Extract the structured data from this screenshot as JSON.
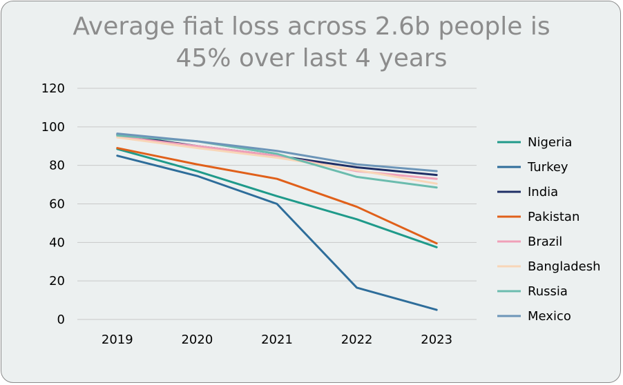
{
  "chart_data": {
    "type": "line",
    "title": "Average fiat loss across 2.6b people is 45% over last 4 years",
    "title_lines": [
      "Average fiat loss across 2.6b people is",
      "45% over last 4 years"
    ],
    "categories": [
      "2019",
      "2020",
      "2021",
      "2022",
      "2023"
    ],
    "ylim": [
      0,
      120
    ],
    "yticks": [
      0,
      20,
      40,
      60,
      80,
      100,
      120
    ],
    "grid": true,
    "legend": "right",
    "series": [
      {
        "name": "Nigeria",
        "color": "#1f9a8a",
        "values": [
          88.5,
          77,
          64,
          52,
          37.5
        ]
      },
      {
        "name": "Turkey",
        "color": "#2e6d9a",
        "values": [
          85,
          74.5,
          60,
          16.5,
          5
        ]
      },
      {
        "name": "India",
        "color": "#1f2f66",
        "values": [
          96,
          90,
          85,
          79,
          75
        ]
      },
      {
        "name": "Pakistan",
        "color": "#e0601a",
        "values": [
          89,
          80.5,
          73,
          58.5,
          39.5
        ]
      },
      {
        "name": "Brazil",
        "color": "#f0a0b8",
        "values": [
          95,
          90,
          85,
          77,
          73
        ]
      },
      {
        "name": "Bangladesh",
        "color": "#f8d6b8",
        "values": [
          94.5,
          89,
          84,
          77.5,
          70.5
        ]
      },
      {
        "name": "Russia",
        "color": "#6bbcae",
        "values": [
          95.5,
          92.5,
          86,
          74,
          68.5
        ]
      },
      {
        "name": "Mexico",
        "color": "#6c95b8",
        "values": [
          96.5,
          92.5,
          87.5,
          80.5,
          77
        ]
      }
    ]
  }
}
